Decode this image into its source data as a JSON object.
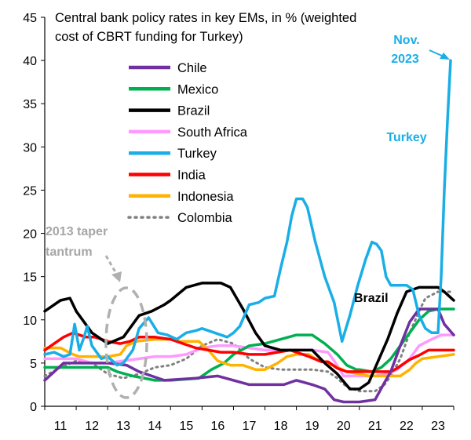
{
  "chart_data": {
    "type": "line",
    "title": "Central bank policy rates in key EMs, in % (weighted cost of CBRT funding for Turkey)",
    "xlabel": "",
    "ylabel": "",
    "xlim": [
      2011,
      2024
    ],
    "ylim": [
      0,
      45
    ],
    "x_ticks": [
      "11",
      "12",
      "13",
      "14",
      "15",
      "16",
      "17",
      "18",
      "19",
      "20",
      "21",
      "22",
      "23"
    ],
    "y_ticks": [
      "0",
      "5",
      "10",
      "15",
      "20",
      "25",
      "30",
      "35",
      "40",
      "45"
    ],
    "grid": false,
    "legend_position": "top-left",
    "series": [
      {
        "name": "Chile",
        "color": "#7030A0",
        "dash": "solid",
        "x": [
          2011.0,
          2011.3,
          2011.6,
          2012.0,
          2013.0,
          2013.6,
          2014.0,
          2014.4,
          2014.8,
          2015.8,
          2016.5,
          2017.0,
          2017.5,
          2018.0,
          2018.6,
          2019.0,
          2019.5,
          2019.9,
          2020.2,
          2020.5,
          2021.0,
          2021.5,
          2021.8,
          2022.0,
          2022.3,
          2022.6,
          2022.9,
          2023.5,
          2023.7,
          2024.0
        ],
        "y": [
          3.0,
          4.0,
          5.0,
          5.0,
          5.0,
          4.75,
          4.0,
          3.5,
          3.0,
          3.25,
          3.5,
          3.0,
          2.5,
          2.5,
          2.5,
          3.0,
          2.5,
          2.0,
          0.75,
          0.5,
          0.5,
          0.75,
          2.75,
          4.0,
          7.0,
          9.75,
          11.25,
          11.25,
          9.5,
          8.25
        ]
      },
      {
        "name": "Mexico",
        "color": "#00B050",
        "dash": "solid",
        "x": [
          2011.0,
          2012.0,
          2013.0,
          2013.3,
          2013.8,
          2014.5,
          2015.0,
          2015.9,
          2016.3,
          2016.7,
          2017.0,
          2017.5,
          2018.0,
          2018.5,
          2019.0,
          2019.5,
          2019.9,
          2020.3,
          2020.6,
          2020.9,
          2021.0,
          2021.4,
          2021.7,
          2022.0,
          2022.3,
          2022.6,
          2022.9,
          2023.2,
          2023.5,
          2024.0
        ],
        "y": [
          4.5,
          4.5,
          4.5,
          4.0,
          3.5,
          3.0,
          3.0,
          3.25,
          4.25,
          5.0,
          6.0,
          7.0,
          7.25,
          7.75,
          8.25,
          8.25,
          7.25,
          6.0,
          4.75,
          4.25,
          4.25,
          4.0,
          4.5,
          5.5,
          7.0,
          8.5,
          10.0,
          11.0,
          11.25,
          11.25
        ]
      },
      {
        "name": "Brazil",
        "color": "#000000",
        "dash": "solid",
        "x": [
          2011.0,
          2011.5,
          2011.8,
          2012.0,
          2012.5,
          2013.0,
          2013.5,
          2014.0,
          2014.4,
          2014.8,
          2015.0,
          2015.5,
          2016.0,
          2016.6,
          2016.9,
          2017.3,
          2017.7,
          2018.0,
          2018.5,
          2019.0,
          2019.5,
          2019.9,
          2020.3,
          2020.7,
          2021.0,
          2021.3,
          2021.6,
          2021.9,
          2022.2,
          2022.5,
          2022.9,
          2023.5,
          2023.7,
          2024.0
        ],
        "y": [
          11.0,
          12.25,
          12.5,
          11.0,
          8.5,
          7.25,
          8.0,
          10.5,
          11.0,
          11.75,
          12.25,
          13.75,
          14.25,
          14.25,
          13.75,
          11.25,
          8.5,
          7.0,
          6.5,
          6.5,
          6.5,
          5.0,
          3.75,
          2.0,
          2.0,
          2.75,
          5.25,
          7.75,
          10.75,
          13.25,
          13.75,
          13.75,
          13.25,
          12.25
        ]
      },
      {
        "name": "South Africa",
        "color": "#FF99FF",
        "dash": "solid",
        "x": [
          2011.0,
          2012.0,
          2012.5,
          2013.0,
          2014.0,
          2014.5,
          2015.0,
          2015.5,
          2016.0,
          2016.5,
          2017.0,
          2017.5,
          2018.0,
          2019.0,
          2019.5,
          2020.0,
          2020.2,
          2020.5,
          2021.0,
          2021.5,
          2021.9,
          2022.2,
          2022.6,
          2022.9,
          2023.3,
          2023.6,
          2024.0
        ],
        "y": [
          5.5,
          5.5,
          5.0,
          5.0,
          5.5,
          5.75,
          5.75,
          6.0,
          6.75,
          7.0,
          7.0,
          6.75,
          6.5,
          6.5,
          6.5,
          6.25,
          5.25,
          3.5,
          3.5,
          3.5,
          3.75,
          4.25,
          5.5,
          7.0,
          7.75,
          8.25,
          8.25
        ]
      },
      {
        "name": "Turkey",
        "color": "#1AAEE6",
        "dash": "solid",
        "x": [
          2011.0,
          2011.3,
          2011.6,
          2011.8,
          2011.95,
          2012.1,
          2012.25,
          2012.35,
          2012.5,
          2012.8,
          2013.0,
          2013.3,
          2013.5,
          2013.8,
          2014.0,
          2014.3,
          2014.6,
          2014.9,
          2015.2,
          2015.5,
          2015.8,
          2016.0,
          2016.4,
          2016.8,
          2017.0,
          2017.2,
          2017.5,
          2017.8,
          2018.0,
          2018.3,
          2018.5,
          2018.7,
          2018.85,
          2019.0,
          2019.2,
          2019.35,
          2019.6,
          2019.9,
          2020.2,
          2020.45,
          2020.7,
          2020.95,
          2021.2,
          2021.4,
          2021.55,
          2021.7,
          2021.85,
          2022.0,
          2022.3,
          2022.5,
          2022.7,
          2022.9,
          2023.1,
          2023.3,
          2023.5,
          2023.6,
          2023.7,
          2023.8,
          2023.9
        ],
        "y": [
          6.0,
          6.25,
          5.75,
          6.0,
          9.5,
          6.5,
          8.0,
          9.25,
          7.0,
          5.5,
          5.75,
          4.75,
          5.0,
          6.5,
          9.0,
          10.25,
          8.5,
          8.25,
          7.75,
          8.5,
          8.75,
          9.0,
          8.5,
          8.0,
          8.5,
          9.25,
          11.75,
          12.0,
          12.5,
          12.75,
          16.0,
          19.0,
          22.0,
          24.0,
          24.0,
          23.0,
          19.0,
          15.0,
          12.0,
          7.5,
          10.5,
          14.0,
          17.0,
          19.0,
          18.75,
          18.0,
          15.0,
          14.0,
          14.0,
          14.0,
          13.5,
          10.5,
          9.0,
          8.5,
          8.5,
          15.0,
          25.0,
          33.0,
          40.0
        ]
      },
      {
        "name": "India",
        "color": "#FF0000",
        "dash": "solid",
        "x": [
          2011.0,
          2011.3,
          2011.6,
          2011.9,
          2012.3,
          2012.6,
          2013.0,
          2013.4,
          2013.7,
          2014.0,
          2014.5,
          2015.0,
          2015.4,
          2015.8,
          2016.2,
          2016.6,
          2017.0,
          2017.5,
          2018.0,
          2018.4,
          2018.8,
          2019.0,
          2019.4,
          2019.8,
          2020.0,
          2020.3,
          2020.6,
          2021.0,
          2021.5,
          2022.0,
          2022.2,
          2022.6,
          2022.9,
          2023.2,
          2023.5,
          2024.0
        ],
        "y": [
          6.5,
          7.25,
          8.0,
          8.5,
          8.0,
          8.0,
          7.5,
          7.25,
          7.5,
          8.0,
          8.0,
          7.75,
          7.25,
          6.75,
          6.5,
          6.25,
          6.25,
          6.0,
          6.0,
          6.25,
          6.5,
          6.25,
          5.75,
          5.15,
          5.15,
          4.4,
          4.0,
          4.0,
          4.0,
          4.0,
          4.4,
          5.4,
          5.9,
          6.5,
          6.5,
          6.5
        ]
      },
      {
        "name": "Indonesia",
        "color": "#FFB300",
        "dash": "solid",
        "x": [
          2011.0,
          2011.5,
          2011.9,
          2012.1,
          2012.6,
          2013.0,
          2013.4,
          2013.6,
          2013.9,
          2014.5,
          2015.0,
          2015.3,
          2015.9,
          2016.2,
          2016.5,
          2016.9,
          2017.3,
          2017.7,
          2018.0,
          2018.4,
          2018.7,
          2019.0,
          2019.4,
          2019.7,
          2020.0,
          2020.3,
          2020.6,
          2021.0,
          2021.3,
          2021.6,
          2022.0,
          2022.3,
          2022.6,
          2022.8,
          2023.0,
          2023.5,
          2024.0
        ],
        "y": [
          6.75,
          6.75,
          6.0,
          5.75,
          5.75,
          5.75,
          6.0,
          7.0,
          7.5,
          7.75,
          7.75,
          7.5,
          7.5,
          6.5,
          5.25,
          4.75,
          4.75,
          4.25,
          4.25,
          5.0,
          5.75,
          6.0,
          6.0,
          5.25,
          5.0,
          4.5,
          4.0,
          3.75,
          3.5,
          3.5,
          3.5,
          3.5,
          4.25,
          5.0,
          5.5,
          5.75,
          6.0
        ]
      },
      {
        "name": "Colombia",
        "color": "#808080",
        "dash": "dotted",
        "x": [
          2011.0,
          2011.5,
          2012.0,
          2012.5,
          2013.0,
          2013.5,
          2014.0,
          2014.5,
          2015.0,
          2015.5,
          2016.0,
          2016.5,
          2017.0,
          2017.5,
          2018.0,
          2018.5,
          2019.0,
          2019.5,
          2020.0,
          2020.3,
          2020.6,
          2021.0,
          2021.5,
          2021.8,
          2022.0,
          2022.3,
          2022.6,
          2022.9,
          2023.1,
          2023.5,
          2024.0
        ],
        "y": [
          3.5,
          4.5,
          5.25,
          5.0,
          3.75,
          3.25,
          3.75,
          4.5,
          4.75,
          5.5,
          7.0,
          7.75,
          7.25,
          5.5,
          4.5,
          4.25,
          4.25,
          4.25,
          4.0,
          3.25,
          2.25,
          1.75,
          1.75,
          2.5,
          3.5,
          5.5,
          8.5,
          11.0,
          12.5,
          13.25,
          13.25
        ]
      }
    ],
    "annotations": [
      {
        "text": "Nov.",
        "color": "#1AAEE6"
      },
      {
        "text": "2023",
        "color": "#1AAEE6"
      },
      {
        "text": "Turkey",
        "color": "#1AAEE6"
      },
      {
        "text": "Brazil",
        "color": "#000000"
      },
      {
        "text": "2013 taper",
        "color": "#A6A6A6"
      },
      {
        "text": "tantrum",
        "color": "#A6A6A6"
      }
    ]
  }
}
